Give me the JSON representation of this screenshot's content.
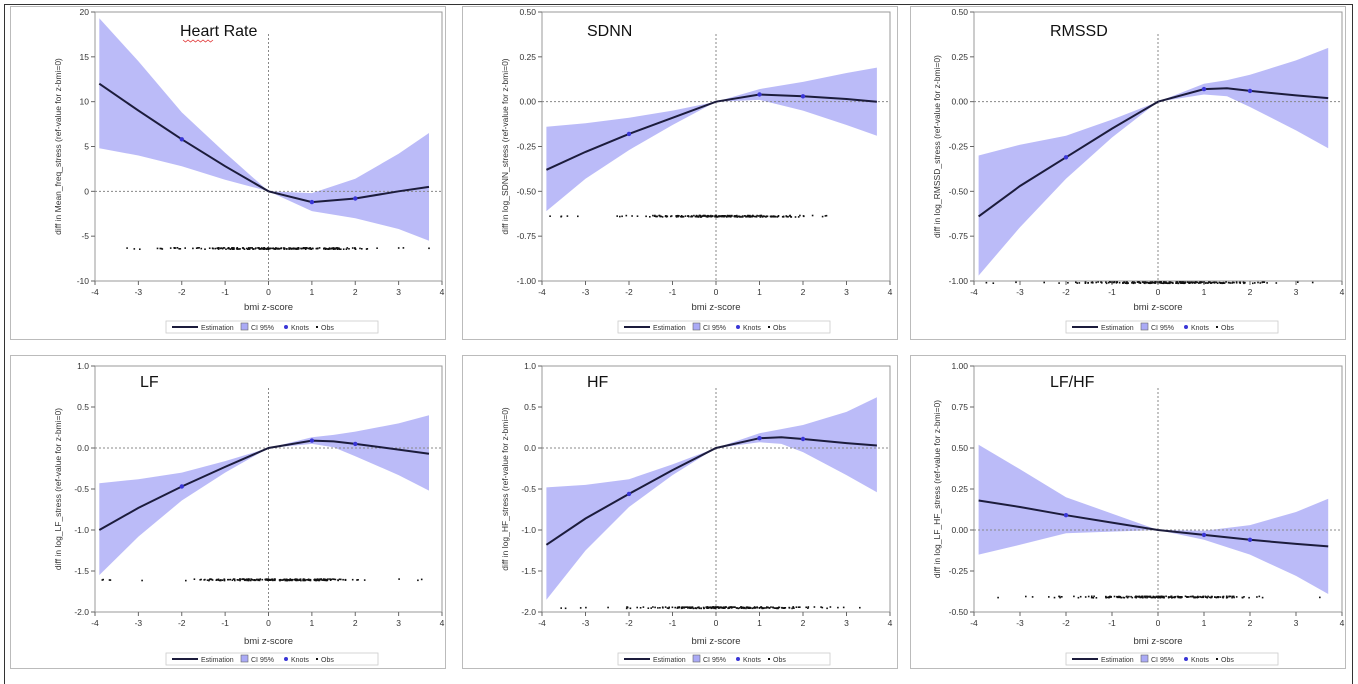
{
  "colors": {
    "band": "#aaaaf6",
    "line": "#1c1c3c",
    "knot": "#3a36d6",
    "obs": "#111111",
    "axis": "#888888"
  },
  "legend": {
    "estimation": "Estimation",
    "ci": "CI 95%",
    "knots": "Knots",
    "obs": "Obs"
  },
  "chart_data": [
    {
      "type": "line",
      "title": "Heart Rate",
      "xlabel": "bmi z-score",
      "ylabel": "diff in Mean_freq_stress (ref-value for z-bmi=0)",
      "xlim": [
        -4,
        4
      ],
      "ylim": [
        -10,
        20
      ],
      "xticks": [
        "-4",
        "-3",
        "-2",
        "-1",
        "0",
        "1",
        "2",
        "3",
        "4"
      ],
      "yticks": [
        "-10",
        "-5",
        "0",
        "5",
        "10",
        "15",
        "20"
      ],
      "grid": false,
      "legend_position": "bottom",
      "series": [
        {
          "name": "Estimation",
          "x": [
            -3.9,
            -3,
            -2,
            -1,
            0,
            1,
            2,
            3,
            3.7
          ],
          "values": [
            12,
            9,
            5.8,
            2.8,
            0,
            -1.2,
            -0.8,
            0,
            0.5
          ]
        },
        {
          "name": "CI 95%",
          "x": [
            -3.9,
            -3,
            -2,
            -1,
            0,
            1,
            2,
            3,
            3.7
          ],
          "lower": [
            4.8,
            4,
            2.8,
            1.3,
            0,
            -2.2,
            -3,
            -4.2,
            -5.5
          ],
          "upper": [
            19.3,
            14.5,
            8.8,
            4.3,
            0,
            -0.2,
            1.4,
            4.2,
            6.5
          ]
        },
        {
          "name": "Knots",
          "x": [
            -2,
            1,
            2
          ],
          "values": [
            5.8,
            -1.2,
            -0.8
          ]
        },
        {
          "name": "Obs",
          "x_range": [
            -3.9,
            3.7
          ],
          "y": -6.4
        }
      ]
    },
    {
      "type": "line",
      "title": "SDNN",
      "xlabel": "bmi z-score",
      "ylabel": "diff in log_SDNN_stress (ref-value for z-bmi=0)",
      "xlim": [
        -4,
        4
      ],
      "ylim": [
        -1,
        0.5
      ],
      "xticks": [
        "-4",
        "-3",
        "-2",
        "-1",
        "0",
        "1",
        "2",
        "3",
        "4"
      ],
      "yticks": [
        "-1.00",
        "-0.75",
        "-0.50",
        "-0.25",
        "0.00",
        "0.25",
        "0.50"
      ],
      "grid": false,
      "legend_position": "bottom",
      "series": [
        {
          "name": "Estimation",
          "x": [
            -3.9,
            -3,
            -2,
            -1,
            0,
            1,
            2,
            3,
            3.7
          ],
          "values": [
            -0.38,
            -0.28,
            -0.18,
            -0.09,
            0,
            0.04,
            0.03,
            0.015,
            0.0
          ]
        },
        {
          "name": "CI 95%",
          "x": [
            -3.9,
            -3,
            -2,
            -1,
            0,
            1,
            2,
            3,
            3.7
          ],
          "lower": [
            -0.61,
            -0.43,
            -0.27,
            -0.13,
            0,
            0.01,
            -0.05,
            -0.13,
            -0.19
          ],
          "upper": [
            -0.14,
            -0.12,
            -0.09,
            -0.05,
            0,
            0.07,
            0.11,
            0.16,
            0.19
          ]
        },
        {
          "name": "Knots",
          "x": [
            -2,
            1,
            2
          ],
          "values": [
            -0.18,
            0.04,
            0.03
          ]
        },
        {
          "name": "Obs",
          "x_range": [
            -3.9,
            3.7
          ],
          "y": -0.64
        }
      ]
    },
    {
      "type": "line",
      "title": "RMSSD",
      "xlabel": "bmi z-score",
      "ylabel": "diff in log_RMSSD_stress (ref-value for z-bmi=0)",
      "xlim": [
        -4,
        4
      ],
      "ylim": [
        -1,
        0.5
      ],
      "xticks": [
        "-4",
        "-3",
        "-2",
        "-1",
        "0",
        "1",
        "2",
        "3",
        "4"
      ],
      "yticks": [
        "-1.00",
        "-0.75",
        "-0.50",
        "-0.25",
        "0.00",
        "0.25",
        "0.50"
      ],
      "grid": false,
      "legend_position": "bottom",
      "series": [
        {
          "name": "Estimation",
          "x": [
            -3.9,
            -3,
            -2,
            -1,
            0,
            1,
            1.5,
            2,
            3,
            3.7
          ],
          "values": [
            -0.64,
            -0.47,
            -0.31,
            -0.15,
            0,
            0.07,
            0.075,
            0.06,
            0.035,
            0.02
          ]
        },
        {
          "name": "CI 95%",
          "x": [
            -3.9,
            -3,
            -2,
            -1,
            0,
            1,
            1.5,
            2,
            3,
            3.7
          ],
          "lower": [
            -0.97,
            -0.7,
            -0.43,
            -0.2,
            0,
            0.04,
            0.03,
            -0.03,
            -0.16,
            -0.26
          ],
          "upper": [
            -0.3,
            -0.24,
            -0.19,
            -0.1,
            0,
            0.1,
            0.12,
            0.15,
            0.23,
            0.3
          ]
        },
        {
          "name": "Knots",
          "x": [
            -2,
            1,
            2
          ],
          "values": [
            -0.31,
            0.07,
            0.06
          ]
        },
        {
          "name": "Obs",
          "x_range": [
            -3.9,
            3.7
          ],
          "y": -1.01
        }
      ]
    },
    {
      "type": "line",
      "title": "LF",
      "xlabel": "bmi z-score",
      "ylabel": "diff in log_LF_stress (ref-value for z-bmi=0)",
      "xlim": [
        -4,
        4
      ],
      "ylim": [
        -2,
        1
      ],
      "xticks": [
        "-4",
        "-3",
        "-2",
        "-1",
        "0",
        "1",
        "2",
        "3",
        "4"
      ],
      "yticks": [
        "-2.0",
        "-1.5",
        "-1.0",
        "-0.5",
        "0.0",
        "0.5",
        "1.0"
      ],
      "grid": false,
      "legend_position": "bottom",
      "series": [
        {
          "name": "Estimation",
          "x": [
            -3.9,
            -3,
            -2,
            -1,
            0,
            1,
            1.5,
            2,
            3,
            3.7
          ],
          "values": [
            -1.0,
            -0.73,
            -0.47,
            -0.23,
            0,
            0.09,
            0.08,
            0.05,
            -0.02,
            -0.07
          ]
        },
        {
          "name": "CI 95%",
          "x": [
            -3.9,
            -3,
            -2,
            -1,
            0,
            1,
            1.5,
            2,
            3,
            3.7
          ],
          "lower": [
            -1.55,
            -1.08,
            -0.64,
            -0.3,
            0,
            0.05,
            0.01,
            -0.1,
            -0.33,
            -0.52
          ],
          "upper": [
            -0.43,
            -0.38,
            -0.3,
            -0.16,
            0,
            0.13,
            0.16,
            0.2,
            0.3,
            0.4
          ]
        },
        {
          "name": "Knots",
          "x": [
            -2,
            1,
            2
          ],
          "values": [
            -0.47,
            0.09,
            0.05
          ]
        },
        {
          "name": "Obs",
          "x_range": [
            -3.9,
            3.7
          ],
          "y": -1.61
        }
      ]
    },
    {
      "type": "line",
      "title": "HF",
      "xlabel": "bmi z-score",
      "ylabel": "diff in log_HF_stress (ref-value for z-bmi=0)",
      "xlim": [
        -4,
        4
      ],
      "ylim": [
        -2,
        1
      ],
      "xticks": [
        "-4",
        "-3",
        "-2",
        "-1",
        "0",
        "1",
        "2",
        "3",
        "4"
      ],
      "yticks": [
        "-2.0",
        "-1.5",
        "-1.0",
        "-0.5",
        "0.0",
        "0.5",
        "1.0"
      ],
      "grid": false,
      "legend_position": "bottom",
      "series": [
        {
          "name": "Estimation",
          "x": [
            -3.9,
            -3,
            -2,
            -1,
            0,
            1,
            1.5,
            2,
            3,
            3.7
          ],
          "values": [
            -1.18,
            -0.86,
            -0.56,
            -0.27,
            0,
            0.12,
            0.13,
            0.11,
            0.06,
            0.03
          ]
        },
        {
          "name": "CI 95%",
          "x": [
            -3.9,
            -3,
            -2,
            -1,
            0,
            1,
            1.5,
            2,
            3,
            3.7
          ],
          "lower": [
            -1.85,
            -1.25,
            -0.72,
            -0.33,
            0,
            0.07,
            0.05,
            -0.05,
            -0.33,
            -0.54
          ],
          "upper": [
            -0.48,
            -0.45,
            -0.38,
            -0.2,
            0,
            0.18,
            0.23,
            0.28,
            0.44,
            0.62
          ]
        },
        {
          "name": "Knots",
          "x": [
            -2,
            1,
            2
          ],
          "values": [
            -0.56,
            0.12,
            0.11
          ]
        },
        {
          "name": "Obs",
          "x_range": [
            -3.9,
            3.7
          ],
          "y": -1.95
        }
      ]
    },
    {
      "type": "line",
      "title": "LF/HF",
      "xlabel": "bmi z-score",
      "ylabel": "diff in log_LF_HF_stress (ref-value for z-bmi=0)",
      "xlim": [
        -4,
        4
      ],
      "ylim": [
        -0.5,
        1
      ],
      "xticks": [
        "-4",
        "-3",
        "-2",
        "-1",
        "0",
        "1",
        "2",
        "3",
        "4"
      ],
      "yticks": [
        "-0.50",
        "-0.25",
        "0.00",
        "0.25",
        "0.50",
        "0.75",
        "1.00"
      ],
      "grid": false,
      "legend_position": "bottom",
      "series": [
        {
          "name": "Estimation",
          "x": [
            -3.9,
            -3,
            -2,
            -1,
            0,
            1,
            2,
            3,
            3.7
          ],
          "values": [
            0.18,
            0.14,
            0.09,
            0.045,
            0,
            -0.03,
            -0.06,
            -0.085,
            -0.1
          ]
        },
        {
          "name": "CI 95%",
          "x": [
            -3.9,
            -3,
            -2,
            -1,
            0,
            1,
            2,
            3,
            3.7
          ],
          "lower": [
            -0.15,
            -0.09,
            -0.02,
            -0.01,
            0,
            -0.06,
            -0.15,
            -0.28,
            -0.39
          ],
          "upper": [
            0.52,
            0.37,
            0.2,
            0.1,
            0,
            -0.005,
            0.03,
            0.11,
            0.19
          ]
        },
        {
          "name": "Knots",
          "x": [
            -2,
            1,
            2
          ],
          "values": [
            0.09,
            -0.03,
            -0.06
          ]
        },
        {
          "name": "Obs",
          "x_range": [
            -3.9,
            3.7
          ],
          "y": -0.41
        }
      ]
    }
  ]
}
